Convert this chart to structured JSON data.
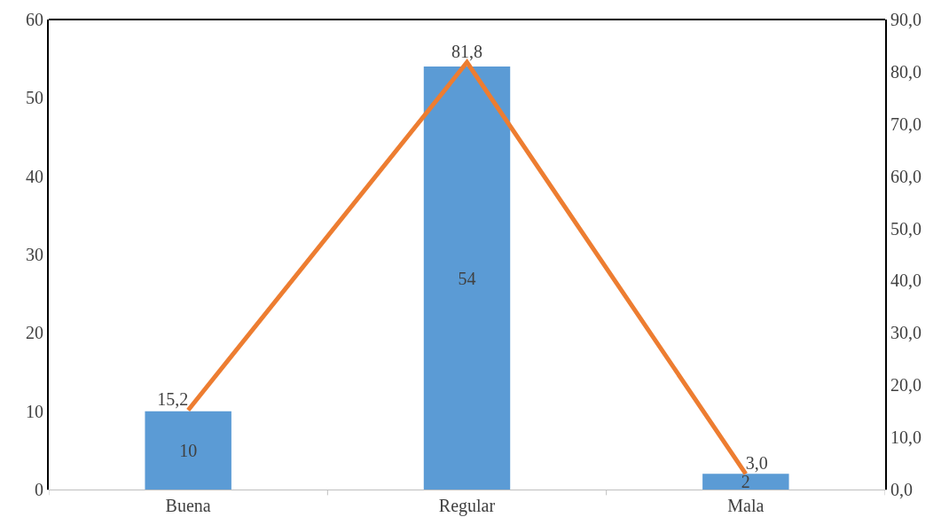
{
  "chart_data": {
    "type": "bar",
    "categories": [
      "Buena",
      "Regular",
      "Mala"
    ],
    "series": [
      {
        "color": "#5b9bd5",
        "values": [
          10,
          54,
          2
        ],
        "value_labels": [
          "10",
          "54",
          "2"
        ]
      },
      {
        "type": "line",
        "axis": "y2",
        "color": "#ed7d31",
        "values": [
          15.2,
          81.8,
          3.0
        ],
        "value_labels": [
          "15,2",
          "81,8",
          "3,0"
        ]
      }
    ],
    "ylim": [
      0,
      60
    ],
    "yticks": [
      0,
      10,
      20,
      30,
      40,
      50,
      60
    ],
    "y2lim": [
      0,
      90
    ],
    "y2ticks": [
      {
        "value": 0,
        "label": "0,0"
      },
      {
        "value": 10,
        "label": "10,0"
      },
      {
        "value": 20,
        "label": "20,0"
      },
      {
        "value": 30,
        "label": "30,0"
      },
      {
        "value": 40,
        "label": "40,0"
      },
      {
        "value": 50,
        "label": "50,0"
      },
      {
        "value": 60,
        "label": "60,0"
      },
      {
        "value": 70,
        "label": "70,0"
      },
      {
        "value": 80,
        "label": "80,0"
      },
      {
        "value": 90,
        "label": "90,0"
      }
    ],
    "grid": false,
    "marker": "none",
    "line_style": "solid"
  }
}
